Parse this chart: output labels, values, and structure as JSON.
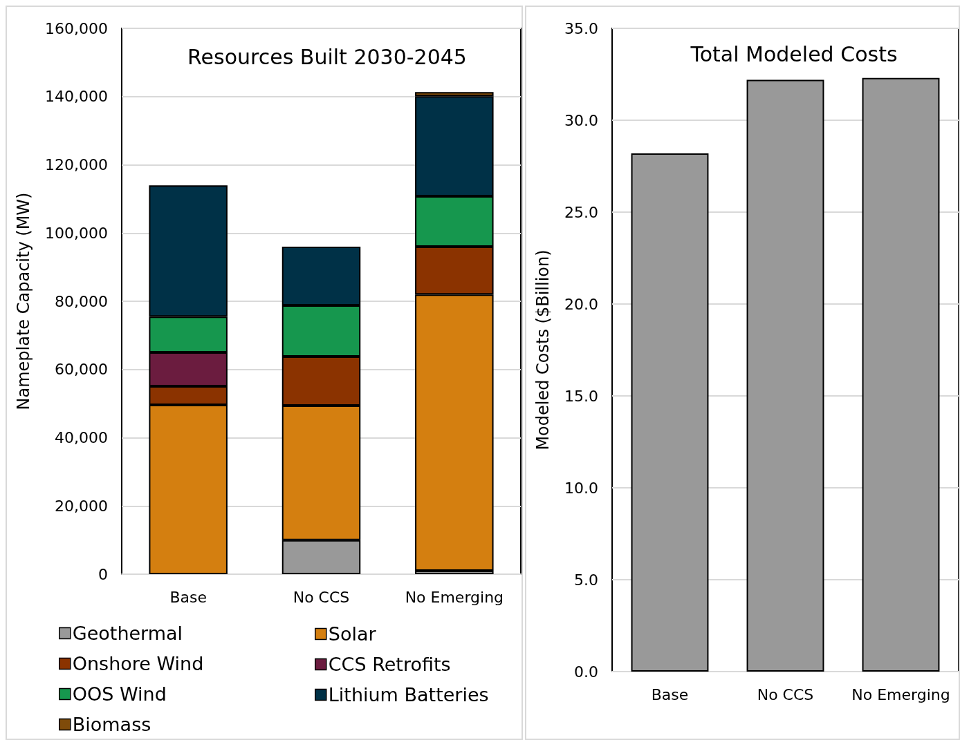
{
  "chart_data": [
    {
      "type": "bar",
      "title": "Resources Built 2030-2045",
      "ylabel": "Nameplate Capacity (MW)",
      "categories": [
        "Base",
        "No CCS",
        "No Emerging"
      ],
      "stacked": true,
      "series": [
        {
          "name": "Geothermal",
          "color": "#999999",
          "values": [
            0,
            10000,
            1000
          ]
        },
        {
          "name": "Solar",
          "color": "#d47f10",
          "values": [
            49600,
            39400,
            81000
          ]
        },
        {
          "name": "Onshore Wind",
          "color": "#8b3300",
          "values": [
            5500,
            14400,
            14000
          ]
        },
        {
          "name": "CCS Retrofits",
          "color": "#6b1c3f",
          "values": [
            9900,
            0,
            0
          ]
        },
        {
          "name": "OOS Wind",
          "color": "#16974e",
          "values": [
            10500,
            15000,
            14800
          ]
        },
        {
          "name": "Lithium Batteries",
          "color": "#003147",
          "values": [
            38500,
            17200,
            29300
          ]
        },
        {
          "name": "Biomass",
          "color": "#7f4b0a",
          "values": [
            0,
            0,
            1200
          ]
        }
      ],
      "ylim": [
        0,
        160000
      ],
      "yticks": [
        {
          "value": 0,
          "label": "0"
        },
        {
          "value": 20000,
          "label": "20,000"
        },
        {
          "value": 40000,
          "label": "40,000"
        },
        {
          "value": 60000,
          "label": "60,000"
        },
        {
          "value": 80000,
          "label": "80,000"
        },
        {
          "value": 100000,
          "label": "100,000"
        },
        {
          "value": 120000,
          "label": "120,000"
        },
        {
          "value": 140000,
          "label": "140,000"
        },
        {
          "value": 160000,
          "label": "160,000"
        }
      ],
      "grid": "y",
      "legend": "bottom"
    },
    {
      "type": "bar",
      "title": "Total Modeled Costs",
      "ylabel": "Modeled Costs ($Billion)",
      "categories": [
        "Base",
        "No CCS",
        "No Emerging"
      ],
      "series": [
        {
          "color": "#999999",
          "values": [
            28.2,
            32.2,
            32.3
          ]
        }
      ],
      "ylim": [
        0,
        35
      ],
      "yticks": [
        {
          "value": 0,
          "label": "0.0"
        },
        {
          "value": 5,
          "label": "5.0"
        },
        {
          "value": 10,
          "label": "10.0"
        },
        {
          "value": 15,
          "label": "15.0"
        },
        {
          "value": 20,
          "label": "20.0"
        },
        {
          "value": 25,
          "label": "25.0"
        },
        {
          "value": 30,
          "label": "30.0"
        },
        {
          "value": 35,
          "label": "35.0"
        }
      ],
      "grid": "y",
      "legend": false
    }
  ]
}
